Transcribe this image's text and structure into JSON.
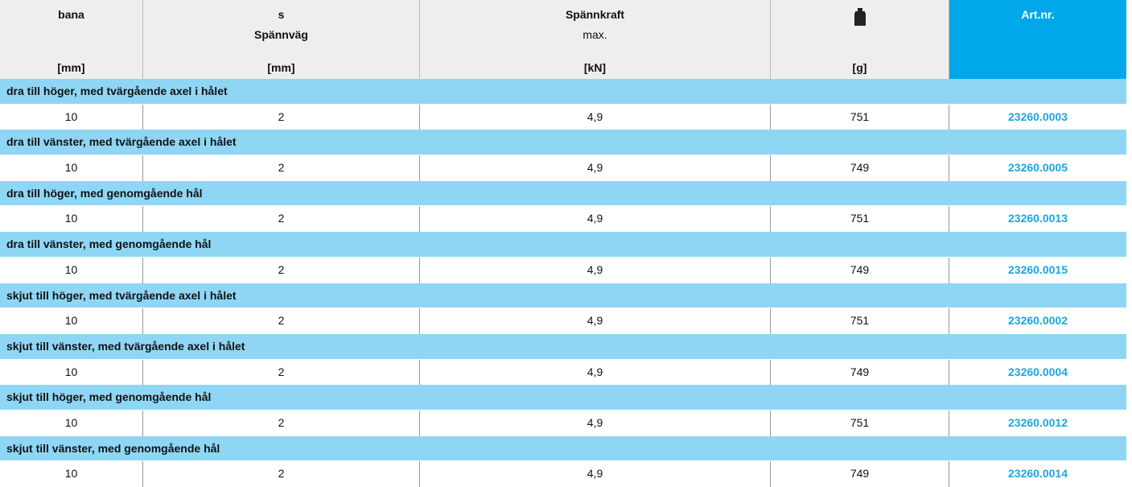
{
  "header": {
    "col1": {
      "top": "bana",
      "bottom": "[mm]"
    },
    "col2": {
      "top": "s",
      "middle": "Spännväg",
      "bottom": "[mm]"
    },
    "col3": {
      "top": "Spännkraft",
      "middle": "max.",
      "bottom": "[kN]"
    },
    "col4": {
      "bottom": "[g]"
    },
    "col5": {
      "top": "Art.nr."
    }
  },
  "groups": [
    {
      "title": "dra till höger, med tvärgående axel i hålet",
      "row": [
        "10",
        "2",
        "4,9",
        "751",
        "23260.0003"
      ]
    },
    {
      "title": "dra till vänster, med tvärgående axel i hålet",
      "row": [
        "10",
        "2",
        "4,9",
        "749",
        "23260.0005"
      ]
    },
    {
      "title": "dra till höger, med genomgående hål",
      "row": [
        "10",
        "2",
        "4,9",
        "751",
        "23260.0013"
      ]
    },
    {
      "title": "dra till vänster, med genomgående hål",
      "row": [
        "10",
        "2",
        "4,9",
        "749",
        "23260.0015"
      ]
    },
    {
      "title": "skjut till höger, med tvärgående axel i hålet",
      "row": [
        "10",
        "2",
        "4,9",
        "751",
        "23260.0002"
      ]
    },
    {
      "title": "skjut till vänster, med tvärgående axel i hålet",
      "row": [
        "10",
        "2",
        "4,9",
        "749",
        "23260.0004"
      ]
    },
    {
      "title": "skjut till höger, med genomgående hål",
      "row": [
        "10",
        "2",
        "4,9",
        "751",
        "23260.0012"
      ]
    },
    {
      "title": "skjut till vänster, med genomgående hål",
      "row": [
        "10",
        "2",
        "4,9",
        "749",
        "23260.0014"
      ]
    }
  ]
}
